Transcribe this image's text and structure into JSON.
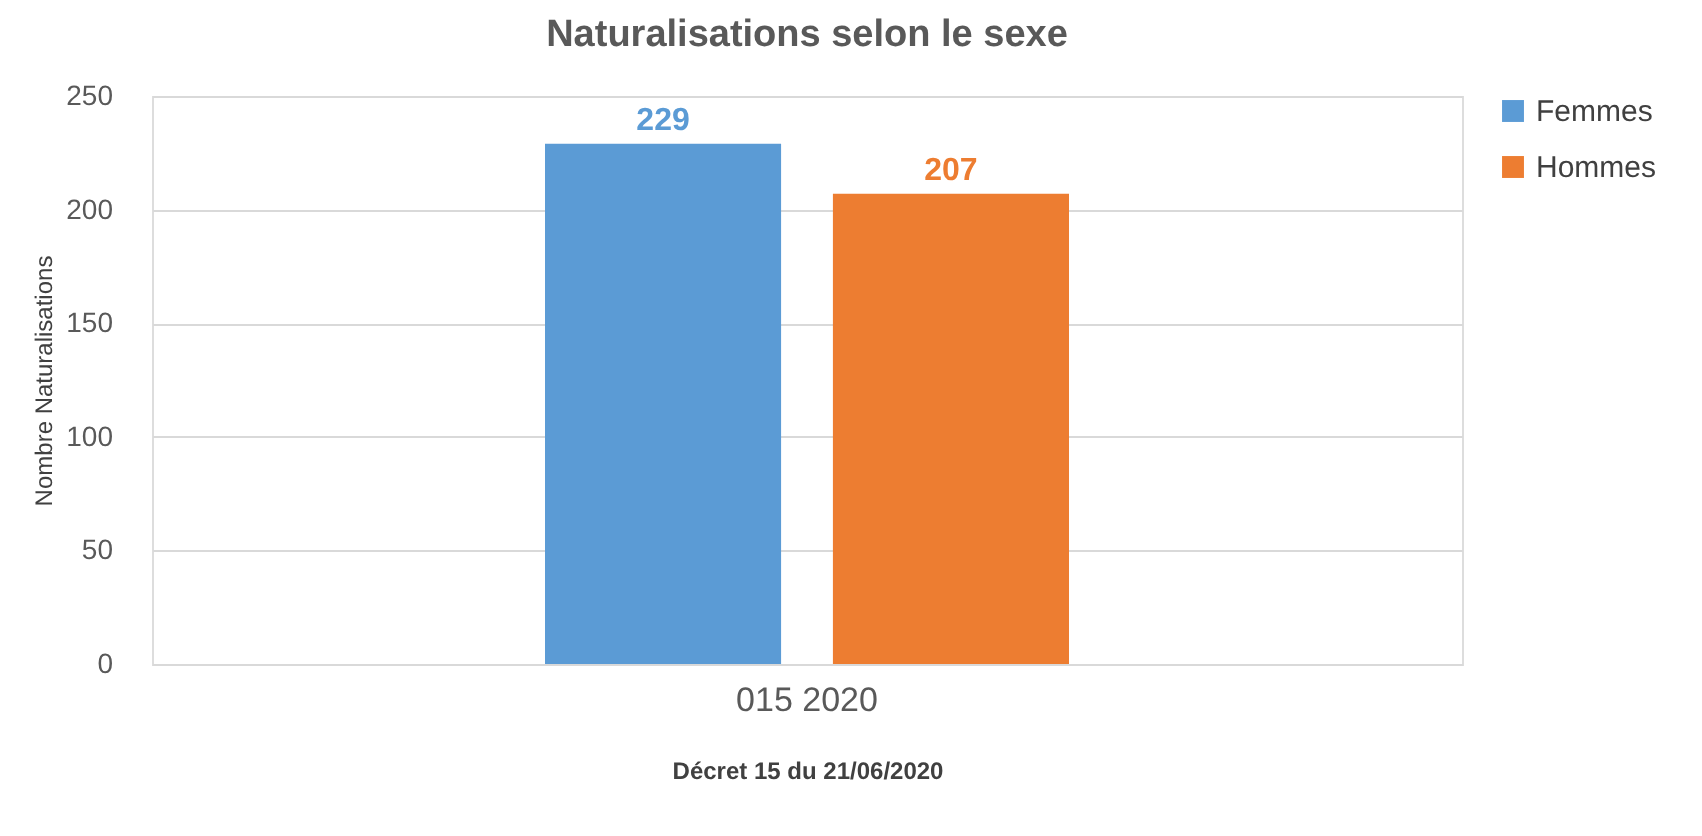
{
  "chart_data": {
    "type": "bar",
    "title": "Naturalisations selon le sexe",
    "xlabel": "Décret 15 du 21/06/2020",
    "ylabel": "Nombre Naturalisations",
    "categories": [
      "015 2020"
    ],
    "series": [
      {
        "name": "Femmes",
        "color": "#5b9bd5",
        "values": [
          229
        ]
      },
      {
        "name": "Hommes",
        "color": "#ed7d31",
        "values": [
          207
        ]
      }
    ],
    "ylim": [
      0,
      250
    ],
    "yticks": [
      0,
      50,
      100,
      150,
      200,
      250
    ],
    "grid": "y",
    "legend": "right",
    "data_labels": true
  }
}
